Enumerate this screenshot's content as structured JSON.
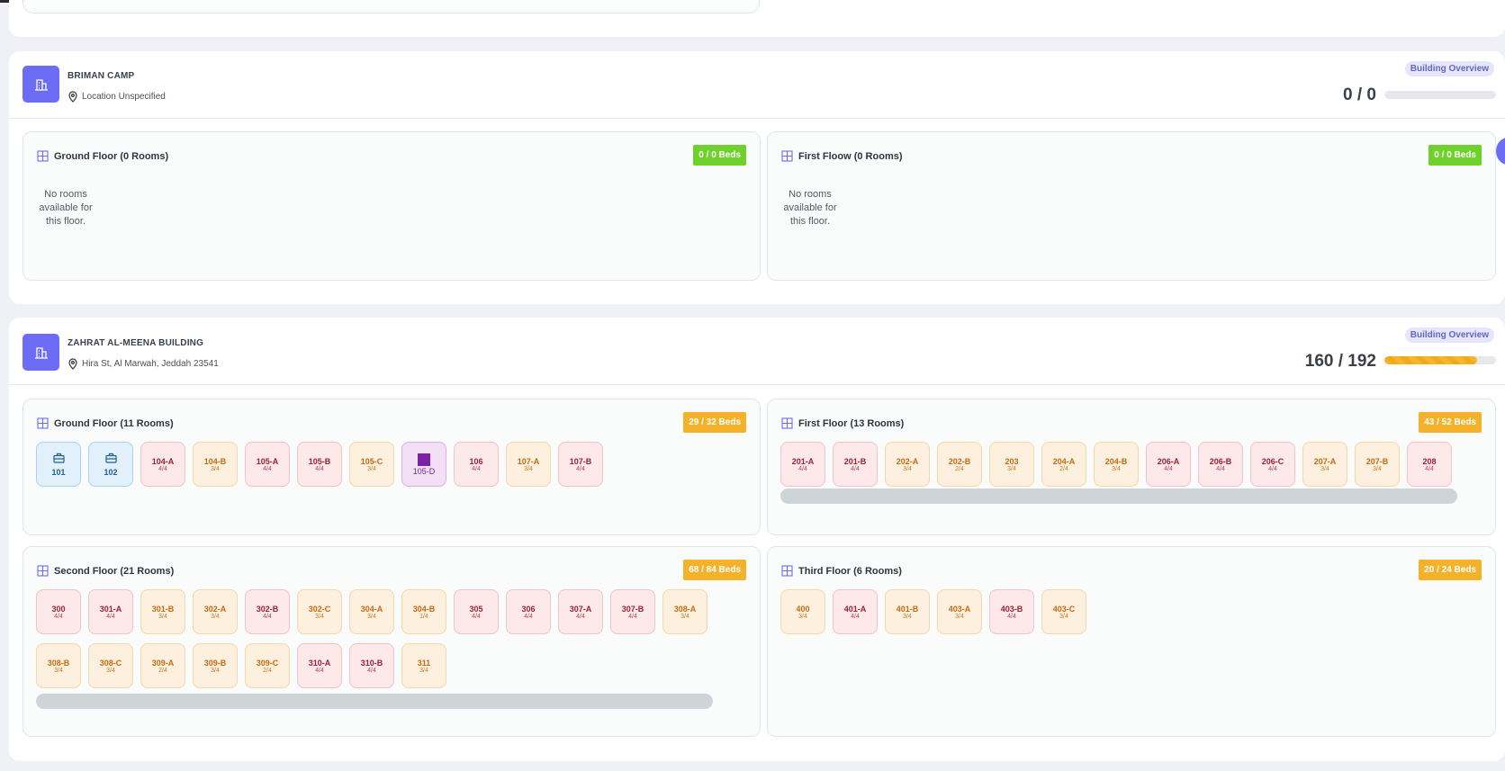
{
  "colors": {
    "accent": "#6c6cf5",
    "full": "#fde8ea",
    "partial": "#fdf0de",
    "office": "#e1f0fb",
    "special": "#f2def5",
    "green_badge": "#6fd12b",
    "amber_badge": "#f4b22a"
  },
  "buildings": [
    {
      "name": "BRIMAN CAMP",
      "location": "Location Unspecified",
      "overview_label": "Building Overview",
      "occupancy_text": "0 / 0",
      "occupancy_fraction": 0,
      "floors": [
        {
          "title": "Ground Floor (0 Rooms)",
          "beds": "0 / 0 Beds",
          "empty_text": "No rooms available for this floor."
        },
        {
          "title": "First Floow (0 Rooms)",
          "beds": "0 / 0 Beds",
          "empty_text": "No rooms available for this floor."
        }
      ]
    },
    {
      "name": "ZAHRAT AL-MEENA BUILDING",
      "location": "Hira St, Al Marwah, Jeddah 23541",
      "overview_label": "Building Overview",
      "occupancy_text": "160 / 192",
      "occupancy_fraction": 0.833,
      "floors": [
        {
          "title": "Ground Floor (11 Rooms)",
          "beds": "29 / 32 Beds",
          "rooms": [
            {
              "name": "101",
              "status": "office",
              "icon": "briefcase-icon"
            },
            {
              "name": "102",
              "status": "office",
              "icon": "briefcase-icon"
            },
            {
              "name": "104-A",
              "beds": "4/4",
              "status": "full"
            },
            {
              "name": "104-B",
              "beds": "3/4",
              "status": "partial"
            },
            {
              "name": "105-A",
              "beds": "4/4",
              "status": "full"
            },
            {
              "name": "105-B",
              "beds": "4/4",
              "status": "full"
            },
            {
              "name": "105-C",
              "beds": "3/4",
              "status": "partial"
            },
            {
              "name": "105-D",
              "status": "special",
              "icon": "square-icon"
            },
            {
              "name": "106",
              "beds": "4/4",
              "status": "full"
            },
            {
              "name": "107-A",
              "beds": "3/4",
              "status": "partial"
            },
            {
              "name": "107-B",
              "beds": "4/4",
              "status": "full"
            }
          ]
        },
        {
          "title": "First Floor (13 Rooms)",
          "beds": "43 / 52 Beds",
          "rooms": [
            {
              "name": "201-A",
              "beds": "4/4",
              "status": "full"
            },
            {
              "name": "201-B",
              "beds": "4/4",
              "status": "full"
            },
            {
              "name": "202-A",
              "beds": "3/4",
              "status": "partial"
            },
            {
              "name": "202-B",
              "beds": "2/4",
              "status": "partial"
            },
            {
              "name": "203",
              "beds": "3/4",
              "status": "partial"
            },
            {
              "name": "204-A",
              "beds": "2/4",
              "status": "partial"
            },
            {
              "name": "204-B",
              "beds": "3/4",
              "status": "partial"
            },
            {
              "name": "206-A",
              "beds": "4/4",
              "status": "full"
            },
            {
              "name": "206-B",
              "beds": "4/4",
              "status": "full"
            },
            {
              "name": "206-C",
              "beds": "4/4",
              "status": "full"
            },
            {
              "name": "207-A",
              "beds": "3/4",
              "status": "partial"
            },
            {
              "name": "207-B",
              "beds": "3/4",
              "status": "partial"
            },
            {
              "name": "208",
              "beds": "4/4",
              "status": "full"
            }
          ]
        },
        {
          "title": "Second Floor (21 Rooms)",
          "beds": "68 / 84 Beds",
          "rooms": [
            {
              "name": "300",
              "beds": "4/4",
              "status": "full"
            },
            {
              "name": "301-A",
              "beds": "4/4",
              "status": "full"
            },
            {
              "name": "301-B",
              "beds": "3/4",
              "status": "partial"
            },
            {
              "name": "302-A",
              "beds": "3/4",
              "status": "partial"
            },
            {
              "name": "302-B",
              "beds": "4/4",
              "status": "full"
            },
            {
              "name": "302-C",
              "beds": "3/4",
              "status": "partial"
            },
            {
              "name": "304-A",
              "beds": "3/4",
              "status": "partial"
            },
            {
              "name": "304-B",
              "beds": "1/4",
              "status": "partial"
            },
            {
              "name": "305",
              "beds": "4/4",
              "status": "full"
            },
            {
              "name": "306",
              "beds": "4/4",
              "status": "full"
            },
            {
              "name": "307-A",
              "beds": "4/4",
              "status": "full"
            },
            {
              "name": "307-B",
              "beds": "4/4",
              "status": "full"
            },
            {
              "name": "308-A",
              "beds": "3/4",
              "status": "partial"
            },
            {
              "name": "308-B",
              "beds": "3/4",
              "status": "partial"
            },
            {
              "name": "308-C",
              "beds": "3/4",
              "status": "partial"
            },
            {
              "name": "309-A",
              "beds": "2/4",
              "status": "partial"
            },
            {
              "name": "309-B",
              "beds": "3/4",
              "status": "partial"
            },
            {
              "name": "309-C",
              "beds": "2/4",
              "status": "partial"
            },
            {
              "name": "310-A",
              "beds": "4/4",
              "status": "full"
            },
            {
              "name": "310-B",
              "beds": "4/4",
              "status": "full"
            },
            {
              "name": "311",
              "beds": "3/4",
              "status": "partial"
            }
          ]
        },
        {
          "title": "Third Floor (6 Rooms)",
          "beds": "20 / 24 Beds",
          "rooms": [
            {
              "name": "400",
              "beds": "3/4",
              "status": "partial"
            },
            {
              "name": "401-A",
              "beds": "4/4",
              "status": "full"
            },
            {
              "name": "401-B",
              "beds": "3/4",
              "status": "partial"
            },
            {
              "name": "403-A",
              "beds": "3/4",
              "status": "partial"
            },
            {
              "name": "403-B",
              "beds": "4/4",
              "status": "full"
            },
            {
              "name": "403-C",
              "beds": "3/4",
              "status": "partial"
            }
          ]
        }
      ]
    }
  ]
}
